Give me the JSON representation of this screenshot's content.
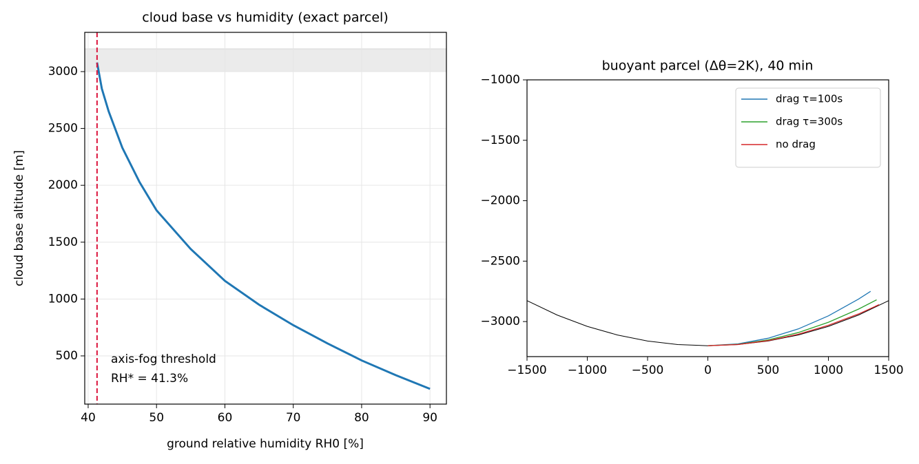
{
  "chart_data": [
    {
      "type": "line",
      "title": "cloud base vs humidity (exact parcel)",
      "xlabel": "ground relative humidity RH0 [%]",
      "ylabel": "cloud base altitude [m]",
      "x": [
        41.3,
        42,
        43,
        45,
        47.5,
        50,
        55,
        60,
        65,
        70,
        75,
        80,
        85,
        90
      ],
      "series": [
        {
          "color": "#1f77b4",
          "values": [
            3080,
            2850,
            2650,
            2330,
            2030,
            1780,
            1440,
            1160,
            950,
            770,
            610,
            460,
            330,
            210
          ]
        }
      ],
      "xlim": [
        39.5,
        92.4
      ],
      "ylim": [
        76,
        3345
      ],
      "xticks": [
        40,
        50,
        60,
        70,
        80,
        90
      ],
      "yticks": [
        500,
        1000,
        1500,
        2000,
        2500,
        3000
      ],
      "grid": true,
      "band": [
        3000,
        3200
      ],
      "band_color": "#ebebeb",
      "vline": 41.3,
      "vline_color": "#dc143c",
      "annotation": [
        "axis-fog threshold",
        "RH* = 41.3%"
      ],
      "annotation_color": "#dc143c"
    },
    {
      "type": "line",
      "title": "buoyant parcel (Δθ=2K), 40 min",
      "series": [
        {
          "name": "drag τ=100s",
          "color": "#1f77b4",
          "x": [
            0,
            250,
            500,
            750,
            1000,
            1250,
            1350
          ],
          "values": [
            -3200,
            -3185,
            -3138,
            -3061,
            -2953,
            -2814,
            -2750
          ]
        },
        {
          "name": "drag τ=300s",
          "color": "#2ca02c",
          "x": [
            0,
            250,
            500,
            750,
            1000,
            1250,
            1400
          ],
          "values": [
            -3200,
            -3188,
            -3152,
            -3091,
            -3006,
            -2897,
            -2820
          ]
        },
        {
          "name": "no drag",
          "color": "#d62728",
          "x": [
            0,
            250,
            500,
            750,
            1000,
            1250,
            1420
          ],
          "values": [
            -3200,
            -3190,
            -3158,
            -3105,
            -3031,
            -2937,
            -2860
          ]
        }
      ],
      "reference": {
        "color": "#000000",
        "x": [
          -1500,
          -1250,
          -1000,
          -750,
          -500,
          -250,
          0,
          250,
          500,
          750,
          1000,
          1250,
          1500
        ],
        "values": [
          -2827,
          -2946,
          -3040,
          -3111,
          -3161,
          -3190,
          -3200,
          -3190,
          -3161,
          -3111,
          -3040,
          -2946,
          -2827
        ]
      },
      "xlim": [
        -1500,
        1500
      ],
      "ylim": [
        -3290,
        -1000
      ],
      "xticks": [
        {
          "value": -1500,
          "label": "−1500"
        },
        {
          "value": -1000,
          "label": "−1000"
        },
        {
          "value": -500,
          "label": "−500"
        },
        0,
        500,
        1000,
        1500
      ],
      "yticks": [
        {
          "value": -1000,
          "label": "−1000"
        },
        {
          "value": -1500,
          "label": "−1500"
        },
        {
          "value": -2000,
          "label": "−2000"
        },
        {
          "value": -2500,
          "label": "−2500"
        },
        {
          "value": -3000,
          "label": "−3000"
        }
      ],
      "grid": false,
      "legend": "upper right"
    }
  ]
}
